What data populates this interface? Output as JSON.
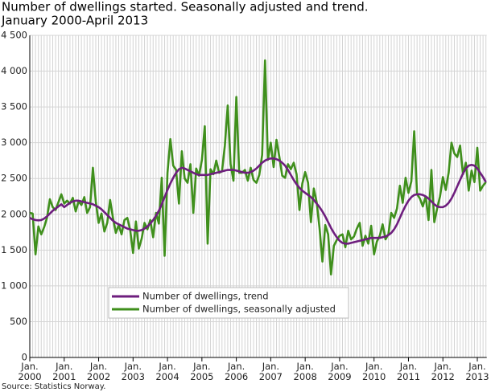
{
  "chart_data": {
    "type": "line",
    "title": "Number of dwellings started. Seasonally adjusted and trend.",
    "subtitle": "January 2000-April 2013",
    "source": "Source: Statistics Norway.",
    "x": [
      "2000-01",
      "2000-02",
      "2000-03",
      "2000-04",
      "2000-05",
      "2000-06",
      "2000-07",
      "2000-08",
      "2000-09",
      "2000-10",
      "2000-11",
      "2000-12",
      "2001-01",
      "2001-02",
      "2001-03",
      "2001-04",
      "2001-05",
      "2001-06",
      "2001-07",
      "2001-08",
      "2001-09",
      "2001-10",
      "2001-11",
      "2001-12",
      "2002-01",
      "2002-02",
      "2002-03",
      "2002-04",
      "2002-05",
      "2002-06",
      "2002-07",
      "2002-08",
      "2002-09",
      "2002-10",
      "2002-11",
      "2002-12",
      "2003-01",
      "2003-02",
      "2003-03",
      "2003-04",
      "2003-05",
      "2003-06",
      "2003-07",
      "2003-08",
      "2003-09",
      "2003-10",
      "2003-11",
      "2003-12",
      "2004-01",
      "2004-02",
      "2004-03",
      "2004-04",
      "2004-05",
      "2004-06",
      "2004-07",
      "2004-08",
      "2004-09",
      "2004-10",
      "2004-11",
      "2004-12",
      "2005-01",
      "2005-02",
      "2005-03",
      "2005-04",
      "2005-05",
      "2005-06",
      "2005-07",
      "2005-08",
      "2005-09",
      "2005-10",
      "2005-11",
      "2005-12",
      "2006-01",
      "2006-02",
      "2006-03",
      "2006-04",
      "2006-05",
      "2006-06",
      "2006-07",
      "2006-08",
      "2006-09",
      "2006-10",
      "2006-11",
      "2006-12",
      "2007-01",
      "2007-02",
      "2007-03",
      "2007-04",
      "2007-05",
      "2007-06",
      "2007-07",
      "2007-08",
      "2007-09",
      "2007-10",
      "2007-11",
      "2007-12",
      "2008-01",
      "2008-02",
      "2008-03",
      "2008-04",
      "2008-05",
      "2008-06",
      "2008-07",
      "2008-08",
      "2008-09",
      "2008-10",
      "2008-11",
      "2008-12",
      "2009-01",
      "2009-02",
      "2009-03",
      "2009-04",
      "2009-05",
      "2009-06",
      "2009-07",
      "2009-08",
      "2009-09",
      "2009-10",
      "2009-11",
      "2009-12",
      "2010-01",
      "2010-02",
      "2010-03",
      "2010-04",
      "2010-05",
      "2010-06",
      "2010-07",
      "2010-08",
      "2010-09",
      "2010-10",
      "2010-11",
      "2010-12",
      "2011-01",
      "2011-02",
      "2011-03",
      "2011-04",
      "2011-05",
      "2011-06",
      "2011-07",
      "2011-08",
      "2011-09",
      "2011-10",
      "2011-11",
      "2011-12",
      "2012-01",
      "2012-02",
      "2012-03",
      "2012-04",
      "2012-05",
      "2012-06",
      "2012-07",
      "2012-08",
      "2012-09",
      "2012-10",
      "2012-11",
      "2012-12",
      "2013-01",
      "2013-02",
      "2013-03",
      "2013-04"
    ],
    "series": [
      {
        "name": "Number of dwellings, trend",
        "color": "#6e1e7e",
        "values": [
          1950,
          1930,
          1920,
          1915,
          1920,
          1940,
          1970,
          2010,
          2050,
          2080,
          2110,
          2140,
          2100,
          2130,
          2160,
          2180,
          2190,
          2190,
          2180,
          2170,
          2160,
          2150,
          2140,
          2120,
          2100,
          2070,
          2030,
          1990,
          1950,
          1910,
          1880,
          1860,
          1840,
          1820,
          1800,
          1790,
          1780,
          1770,
          1770,
          1780,
          1800,
          1830,
          1870,
          1920,
          1980,
          2050,
          2140,
          2240,
          2340,
          2430,
          2510,
          2580,
          2630,
          2650,
          2640,
          2620,
          2600,
          2580,
          2560,
          2550,
          2550,
          2550,
          2550,
          2560,
          2570,
          2580,
          2590,
          2600,
          2610,
          2620,
          2620,
          2620,
          2610,
          2600,
          2590,
          2580,
          2580,
          2590,
          2610,
          2640,
          2680,
          2720,
          2750,
          2770,
          2780,
          2780,
          2770,
          2750,
          2720,
          2680,
          2620,
          2550,
          2480,
          2420,
          2370,
          2330,
          2300,
          2270,
          2240,
          2200,
          2150,
          2100,
          2040,
          1970,
          1890,
          1810,
          1740,
          1680,
          1630,
          1600,
          1590,
          1590,
          1600,
          1610,
          1620,
          1630,
          1640,
          1650,
          1660,
          1670,
          1670,
          1670,
          1670,
          1680,
          1690,
          1710,
          1740,
          1790,
          1860,
          1950,
          2040,
          2120,
          2190,
          2240,
          2270,
          2280,
          2280,
          2270,
          2250,
          2220,
          2180,
          2140,
          2110,
          2100,
          2100,
          2120,
          2160,
          2220,
          2300,
          2390,
          2480,
          2570,
          2640,
          2680,
          2690,
          2680,
          2640,
          2580,
          2520,
          2450
        ]
      },
      {
        "name": "Number of dwellings, seasonally adjusted",
        "color": "#3f8f1c",
        "values": [
          2020,
          2010,
          1440,
          1830,
          1720,
          1820,
          1950,
          2210,
          2100,
          2060,
          2170,
          2280,
          2150,
          2190,
          2150,
          2230,
          2040,
          2180,
          2130,
          2240,
          2020,
          2100,
          2650,
          2180,
          1880,
          2010,
          1760,
          1880,
          2200,
          1950,
          1740,
          1850,
          1720,
          1920,
          1950,
          1780,
          1460,
          1900,
          1520,
          1660,
          1880,
          1790,
          1920,
          1680,
          2020,
          1870,
          2510,
          1420,
          2580,
          3050,
          2680,
          2620,
          2150,
          2880,
          2500,
          2440,
          2700,
          2020,
          2640,
          2540,
          2760,
          3230,
          1590,
          2630,
          2560,
          2750,
          2580,
          2600,
          2960,
          3520,
          2700,
          2470,
          3640,
          2580,
          2580,
          2620,
          2470,
          2650,
          2480,
          2440,
          2550,
          2830,
          4150,
          2760,
          3000,
          2660,
          3040,
          2800,
          2540,
          2510,
          2700,
          2630,
          2720,
          2560,
          2060,
          2430,
          2590,
          2440,
          1890,
          2360,
          2170,
          1810,
          1340,
          1850,
          1720,
          1160,
          1560,
          1640,
          1700,
          1720,
          1540,
          1770,
          1650,
          1690,
          1800,
          1880,
          1560,
          1700,
          1590,
          1840,
          1440,
          1620,
          1700,
          1860,
          1650,
          1720,
          2020,
          1950,
          2080,
          2400,
          2160,
          2510,
          2300,
          2460,
          3160,
          2280,
          2220,
          2110,
          2250,
          1920,
          2620,
          1890,
          2080,
          2250,
          2520,
          2340,
          2580,
          3000,
          2850,
          2800,
          2960,
          2560,
          2720,
          2330,
          2610,
          2450,
          2930,
          2330,
          2400,
          2450
        ]
      }
    ],
    "ylim": [
      0,
      4500
    ],
    "yticks": [
      0,
      500,
      {
        "value": 1000,
        "label": "1 000"
      },
      {
        "value": 1500,
        "label": "1 500"
      },
      {
        "value": 2000,
        "label": "2 000"
      },
      {
        "value": 2500,
        "label": "2 500"
      },
      {
        "value": 3000,
        "label": "3 000"
      },
      {
        "value": 3500,
        "label": "3 500"
      },
      {
        "value": 4000,
        "label": "4 000"
      },
      {
        "value": 4500,
        "label": "4 500"
      }
    ],
    "xticks": [
      {
        "value": "2000-01",
        "label": "Jan. 2000"
      },
      {
        "value": "2001-01",
        "label": "Jan. 2001"
      },
      {
        "value": "2002-01",
        "label": "Jan. 2002"
      },
      {
        "value": "2003-01",
        "label": "Jan. 2003"
      },
      {
        "value": "2004-01",
        "label": "Jan. 2004"
      },
      {
        "value": "2005-01",
        "label": "Jan. 2005"
      },
      {
        "value": "2006-01",
        "label": "Jan. 2006"
      },
      {
        "value": "2007-01",
        "label": "Jan. 2007"
      },
      {
        "value": "2008-01",
        "label": "Jan. 2008"
      },
      {
        "value": "2009-01",
        "label": "Jan. 2009"
      },
      {
        "value": "2010-01",
        "label": "Jan. 2010"
      },
      {
        "value": "2011-01",
        "label": "Jan. 2011"
      },
      {
        "value": "2012-01",
        "label": "Jan. 2012"
      },
      {
        "value": "2013-01",
        "label": "Jan. 2013"
      }
    ],
    "grid": true,
    "legend": "bottom"
  }
}
